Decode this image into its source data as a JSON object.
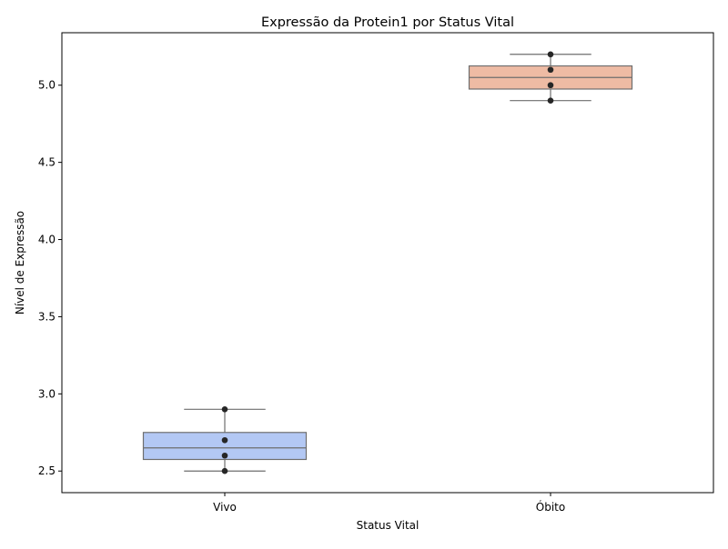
{
  "chart_data": {
    "type": "box",
    "title": "Expressão da Protein1 por Status Vital",
    "xlabel": "Status Vital",
    "ylabel": "Nível de Expressão",
    "categories": [
      "Vivo",
      "Óbito"
    ],
    "ylim": [
      2.36,
      5.34
    ],
    "yticks": [
      2.5,
      3.0,
      3.5,
      4.0,
      4.5,
      5.0
    ],
    "ytick_labels": [
      "2.5",
      "3.0",
      "3.5",
      "4.0",
      "4.5",
      "5.0"
    ],
    "grid": false,
    "boxes": [
      {
        "category": "Vivo",
        "whisker_low": 2.5,
        "q1": 2.575,
        "median": 2.65,
        "q3": 2.75,
        "whisker_high": 2.9,
        "color": "#b3c8f4"
      },
      {
        "category": "Óbito",
        "whisker_low": 4.9,
        "q1": 4.975,
        "median": 5.05,
        "q3": 5.125,
        "whisker_high": 5.2,
        "color": "#eebba4"
      }
    ],
    "points": [
      {
        "category": "Vivo",
        "values": [
          2.9,
          2.7,
          2.6,
          2.5
        ]
      },
      {
        "category": "Óbito",
        "values": [
          5.2,
          5.1,
          5.0,
          4.9
        ]
      }
    ],
    "point_color": "#262626",
    "box_edge_color": "#6e6e6e"
  }
}
